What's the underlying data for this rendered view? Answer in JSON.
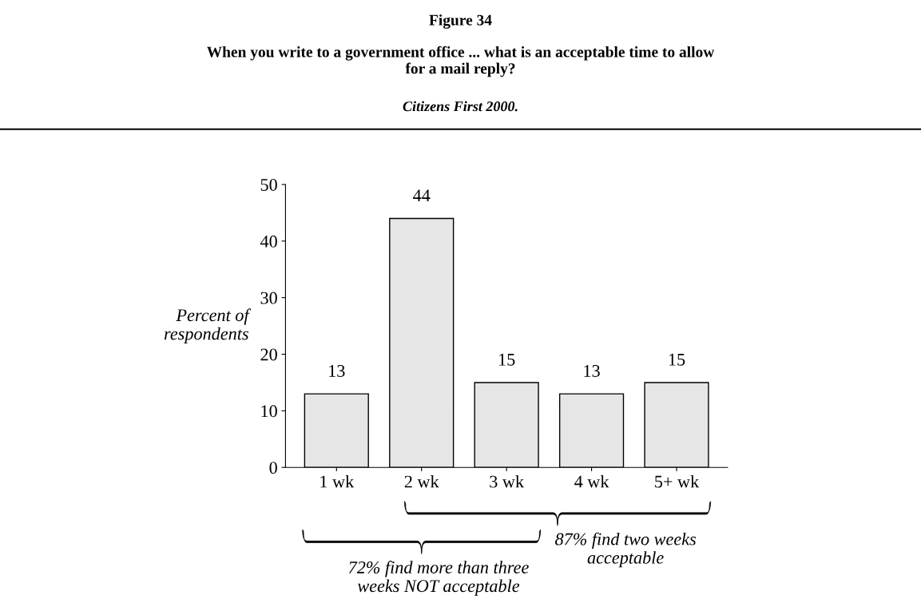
{
  "chart_data": {
    "type": "bar",
    "title": "Figure 34",
    "subtitle": "When you write to a government office ... what is an acceptable time to allow\nfor a mail reply?",
    "annotations": [
      "Citizens First 2000.",
      "72% find more than three\nweeks NOT acceptable",
      "87% find two weeks\nacceptable"
    ],
    "ylabel": "Percent of\nrespondents",
    "categories": [
      "1 wk",
      "2 wk",
      "3 wk",
      "4 wk",
      "5+ wk"
    ],
    "values": [
      13,
      44,
      15,
      13,
      15
    ],
    "color": "#e6e6e6",
    "ylim": [
      0,
      50
    ],
    "yticks": [
      0,
      10,
      20,
      30,
      40,
      50
    ],
    "data_labels": true,
    "grid": false
  }
}
